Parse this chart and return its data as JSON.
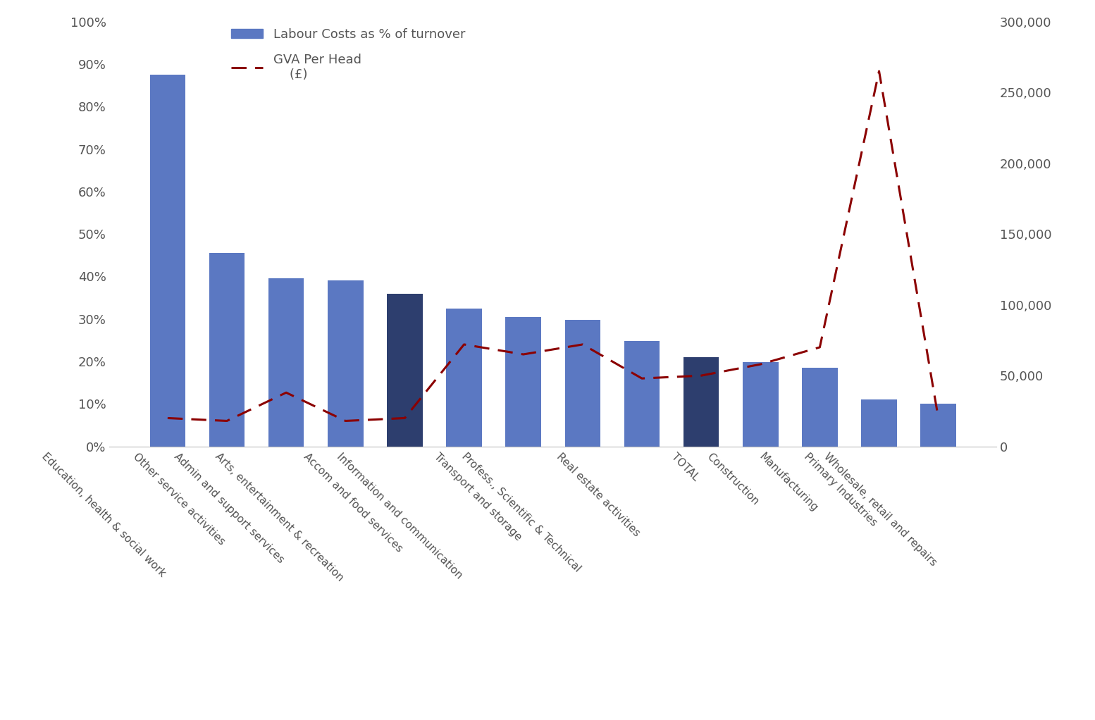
{
  "categories": [
    "Education, health & social work",
    "Other service activities",
    "Admin and support services",
    "Arts, entertainment & recreation",
    "Accom and food services",
    "Information and communication",
    "Transport and storage",
    "Profess., Scientific & Technical",
    "Real estate activities",
    "TOTAL",
    "Construction",
    "Manufacturing",
    "Primary Industries",
    "Wholesale, retail and repairs"
  ],
  "labour_costs_pct": [
    0.875,
    0.455,
    0.395,
    0.39,
    0.36,
    0.325,
    0.305,
    0.298,
    0.248,
    0.21,
    0.198,
    0.185,
    0.11,
    0.1
  ],
  "gva_per_head": [
    20000,
    18000,
    38000,
    18000,
    20000,
    72000,
    65000,
    72000,
    48000,
    50000,
    58000,
    70000,
    265000,
    20000
  ],
  "bar_colors": [
    "#5b78c2",
    "#5b78c2",
    "#5b78c2",
    "#5b78c2",
    "#2d3e6e",
    "#5b78c2",
    "#5b78c2",
    "#5b78c2",
    "#5b78c2",
    "#2d3e6e",
    "#5b78c2",
    "#5b78c2",
    "#5b78c2",
    "#5b78c2"
  ],
  "line_color": "#8b0000",
  "bar_legend_label": "Labour Costs as % of turnover",
  "line_legend_label_line1": "GVA Per Head",
  "line_legend_label_line2": "    (£)",
  "ylim_left": [
    0,
    1.0
  ],
  "ylim_right": [
    0,
    300000
  ],
  "yticks_left": [
    0.0,
    0.1,
    0.2,
    0.3,
    0.4,
    0.5,
    0.6,
    0.7,
    0.8,
    0.9,
    1.0
  ],
  "ytick_labels_left": [
    "0%",
    "10%",
    "20%",
    "30%",
    "40%",
    "50%",
    "60%",
    "70%",
    "80%",
    "90%",
    "100%"
  ],
  "yticks_right": [
    0,
    50000,
    100000,
    150000,
    200000,
    250000,
    300000
  ],
  "ytick_labels_right": [
    "0",
    "50,000",
    "100,000",
    "150,000",
    "200,000",
    "250,000",
    "300,000"
  ],
  "background_color": "#ffffff",
  "tick_color": "#555555",
  "label_fontsize": 13,
  "tick_fontsize": 13
}
